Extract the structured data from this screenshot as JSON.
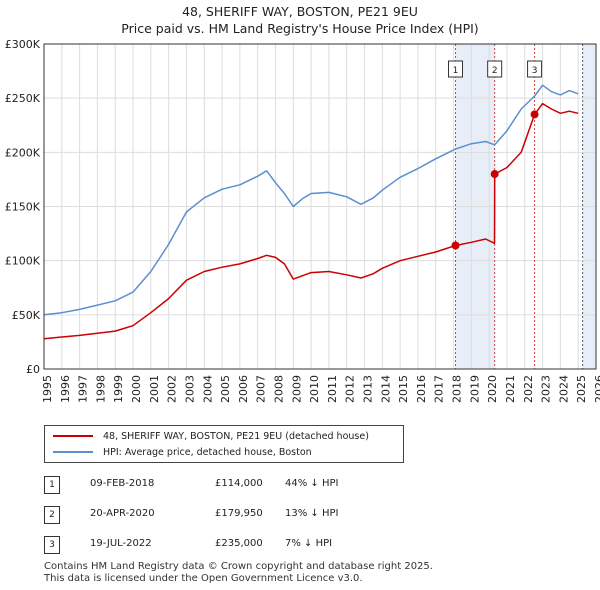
{
  "title_line1": "48, SHERIFF WAY, BOSTON, PE21 9EU",
  "title_line2": "Price paid vs. HM Land Registry's House Price Index (HPI)",
  "colors": {
    "property": "#cc0000",
    "hpi": "#5b8fd0",
    "shade": "#e8eef8",
    "marker_line": "#d04040"
  },
  "chart_data": {
    "type": "line",
    "xlim": [
      1995,
      2026
    ],
    "ylim": [
      0,
      300000
    ],
    "y_ticks": [
      0,
      50000,
      100000,
      150000,
      200000,
      250000,
      300000
    ],
    "y_tick_labels": [
      "£0",
      "£50K",
      "£100K",
      "£150K",
      "£200K",
      "£250K",
      "£300K"
    ],
    "x_ticks": [
      1995,
      1996,
      1997,
      1998,
      1999,
      2000,
      2001,
      2002,
      2003,
      2004,
      2005,
      2006,
      2007,
      2008,
      2009,
      2010,
      2011,
      2012,
      2013,
      2014,
      2015,
      2016,
      2017,
      2018,
      2019,
      2020,
      2021,
      2022,
      2023,
      2024,
      2025,
      2026
    ],
    "x_tick_labels": [
      "1995",
      "1996",
      "1997",
      "1998",
      "1999",
      "2000",
      "2001",
      "2002",
      "2003",
      "2004",
      "2005",
      "2006",
      "2007",
      "2008",
      "2009",
      "2010",
      "2011",
      "2012",
      "2013",
      "2014",
      "2015",
      "2016",
      "2017",
      "2018",
      "2019",
      "2020",
      "2021",
      "2022",
      "2023",
      "2024",
      "2025",
      "2026"
    ],
    "shaded_after": 2025.25,
    "series": [
      {
        "name": "48, SHERIFF WAY, BOSTON, PE21 9EU (detached house)",
        "x": [
          1995.0,
          1996.0,
          1997.0,
          1998.0,
          1999.0,
          2000.0,
          2001.0,
          2002.0,
          2003.0,
          2004.0,
          2005.0,
          2006.0,
          2007.0,
          2007.5,
          2008.0,
          2008.5,
          2009.0,
          2009.5,
          2010.0,
          2011.0,
          2012.0,
          2012.8,
          2013.5,
          2014.0,
          2015.0,
          2016.0,
          2017.0,
          2018.11,
          2019.0,
          2019.8,
          2020.3,
          2020.31,
          2021.0,
          2021.8,
          2022.55,
          2023.0,
          2023.5,
          2024.0,
          2024.5,
          2025.0
        ],
        "values": [
          28000,
          29500,
          31000,
          33000,
          35000,
          40000,
          52000,
          65000,
          82000,
          90000,
          94000,
          97000,
          102000,
          105000,
          103000,
          97000,
          83000,
          86000,
          89000,
          90000,
          87000,
          84000,
          88000,
          93000,
          100000,
          104000,
          108000,
          114000,
          117000,
          120000,
          116000,
          179950,
          186000,
          200000,
          235000,
          245000,
          240000,
          236000,
          238000,
          236000
        ]
      },
      {
        "name": "HPI: Average price, detached house, Boston",
        "x": [
          1995.0,
          1996.0,
          1997.0,
          1998.0,
          1999.0,
          2000.0,
          2001.0,
          2002.0,
          2003.0,
          2004.0,
          2005.0,
          2006.0,
          2007.0,
          2007.5,
          2008.0,
          2008.5,
          2009.0,
          2009.5,
          2010.0,
          2011.0,
          2012.0,
          2012.8,
          2013.5,
          2014.0,
          2015.0,
          2016.0,
          2017.0,
          2018.11,
          2019.0,
          2019.8,
          2020.31,
          2021.0,
          2021.8,
          2022.55,
          2023.0,
          2023.5,
          2024.0,
          2024.5,
          2025.0
        ],
        "values": [
          50000,
          52000,
          55000,
          59000,
          63000,
          71000,
          90000,
          115000,
          145000,
          158000,
          166000,
          170000,
          178000,
          183000,
          172000,
          162000,
          150000,
          157000,
          162000,
          163000,
          159000,
          152000,
          158000,
          165000,
          177000,
          185000,
          194000,
          203000,
          208000,
          210000,
          207000,
          220000,
          240000,
          252000,
          262000,
          256000,
          253000,
          257000,
          254000
        ]
      }
    ],
    "transactions_marked": [
      {
        "label": "1",
        "x": 2018.11,
        "value": 114000
      },
      {
        "label": "2",
        "x": 2020.31,
        "value": 179950
      },
      {
        "label": "3",
        "x": 2022.55,
        "value": 235000
      }
    ]
  },
  "legend": {
    "property": "48, SHERIFF WAY, BOSTON, PE21 9EU (detached house)",
    "hpi": "HPI: Average price, detached house, Boston"
  },
  "transactions": [
    {
      "num": "1",
      "date": "09-FEB-2018",
      "price": "£114,000",
      "hpi": "44% ↓ HPI"
    },
    {
      "num": "2",
      "date": "20-APR-2020",
      "price": "£179,950",
      "hpi": "13% ↓ HPI"
    },
    {
      "num": "3",
      "date": "19-JUL-2022",
      "price": "£235,000",
      "hpi": "7% ↓ HPI"
    }
  ],
  "footer": {
    "line1": "Contains HM Land Registry data © Crown copyright and database right 2025.",
    "line2": "This data is licensed under the Open Government Licence v3.0."
  }
}
